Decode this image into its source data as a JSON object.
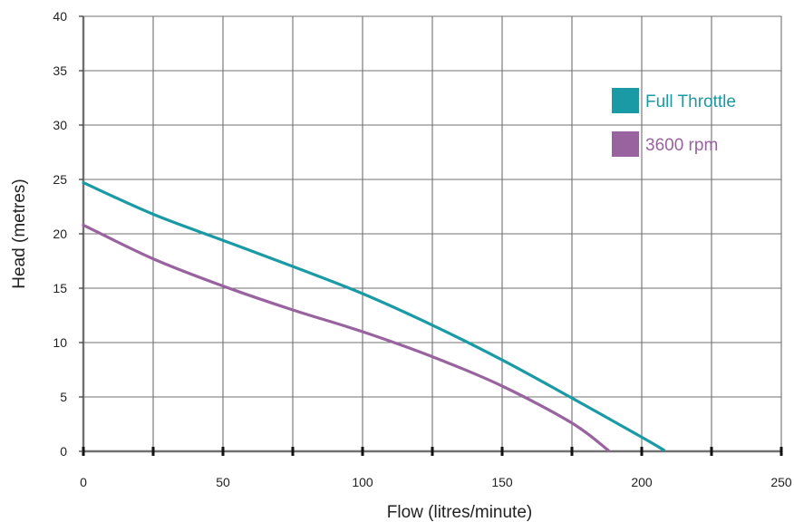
{
  "chart_data": {
    "type": "line",
    "title": "",
    "xlabel": "Flow (litres/minute)",
    "ylabel": "Head (metres)",
    "xlim": [
      0,
      250
    ],
    "ylim": [
      0,
      40
    ],
    "x_ticks": [
      "0",
      "50",
      "100",
      "150",
      "200",
      "250"
    ],
    "y_ticks": [
      "0",
      "5",
      "10",
      "15",
      "20",
      "25",
      "30",
      "35",
      "40"
    ],
    "grid": true,
    "legend_position": "top-right",
    "series": [
      {
        "name": "Full Throttle",
        "color": "#1a9aa5",
        "points": [
          [
            0,
            24.7
          ],
          [
            25,
            21.8
          ],
          [
            50,
            19.4
          ],
          [
            75,
            17.0
          ],
          [
            100,
            14.5
          ],
          [
            125,
            11.6
          ],
          [
            150,
            8.4
          ],
          [
            175,
            4.9
          ],
          [
            200,
            1.3
          ],
          [
            208,
            0.1
          ]
        ]
      },
      {
        "name": "3600 rpm",
        "color": "#98639e",
        "points": [
          [
            0,
            20.8
          ],
          [
            25,
            17.7
          ],
          [
            50,
            15.2
          ],
          [
            75,
            13.0
          ],
          [
            100,
            11.0
          ],
          [
            125,
            8.7
          ],
          [
            150,
            6.0
          ],
          [
            175,
            2.6
          ],
          [
            188,
            0.1
          ]
        ]
      }
    ]
  }
}
